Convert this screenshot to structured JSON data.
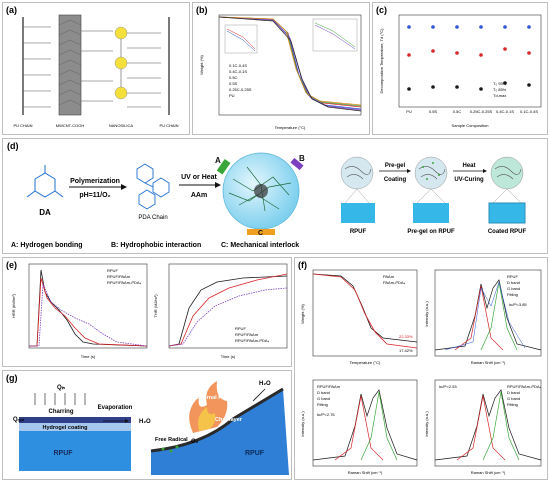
{
  "panels": {
    "a": {
      "label": "(a)",
      "chain_labels": [
        "PU CHAIN",
        "MWCNT-COOH",
        "NANOSILICA",
        "PU CHAIN"
      ]
    },
    "b": {
      "label": "(b)",
      "xlabel": "Temperature (°C)",
      "ylabel": "Weight (%)",
      "legend": [
        "0.1C-0.4S",
        "0.4C-0.1S",
        "0.5C",
        "0.5S",
        "0.25C-0.25S",
        "PU"
      ]
    },
    "c": {
      "label": "(c)",
      "xlabel": "Sample Composition",
      "ylabel": "Decomposition Temperature, Td (°C)",
      "categories": [
        "PU",
        "0.5S",
        "0.5C",
        "0.25C-0.25S",
        "0.4C-0.1S",
        "0.1C-0.4S"
      ],
      "legend": [
        "T₀ 95%",
        "T₀ 85%",
        "Td,max"
      ]
    },
    "d": {
      "label": "(d)",
      "da": "DA",
      "polymerization": "Polymerization",
      "ph": "pH=11/O₂",
      "pda_chain": "PDA Chain",
      "uv_heat": "UV or Heat",
      "aam": "AAm",
      "pre_gel": "Pre-gel",
      "coating": "Coating",
      "heat": "Heat",
      "uv_curing": "UV-Curing",
      "marker_a": "A",
      "marker_b": "B",
      "marker_c": "C",
      "foam_labels": [
        "RPUF",
        "Pre-gel on RPUF",
        "Coated RPUF"
      ],
      "caption_a": "A: Hydrogen bonding",
      "caption_b": "B: Hydrophobic interaction",
      "caption_c": "C: Mechanical interlock"
    },
    "e": {
      "label": "(e)",
      "hrr_ylabel": "HRR (kW/m²)",
      "hrr_xlabel": "Time (s)",
      "thr_ylabel": "THR (MJ/m²)",
      "thr_xlabel": "Time (s)",
      "legend": [
        "RPUF",
        "RPUF/PAAm",
        "RPUF/PAAm-PDA₄"
      ]
    },
    "f": {
      "label": "(f)",
      "tga_legend": [
        "PAAm",
        "PAAm-PDA₄"
      ],
      "tga_xlabel": "Temperature (°C)",
      "tga_ylabel": "Weight (%)",
      "residue_1": "22.33%",
      "residue_2": "17.42%",
      "raman_xlabel": "Raman Shift (cm⁻¹)",
      "raman_ylabel": "Intensity (a.u.)",
      "raman1_legend": [
        "RPUF",
        "D band",
        "G band",
        "Fitting"
      ],
      "raman1_ratio": "Iᴅ/Iᴳ=3.85",
      "raman2_legend": [
        "RPUF/PAAm",
        "D band",
        "G band",
        "Fitting"
      ],
      "raman2_ratio": "Iᴅ/Iᴳ=2.76",
      "raman3_legend": [
        "RPUF/PAAm-PDA₄",
        "D band",
        "G band",
        "Fitting"
      ],
      "raman3_ratio": "Iᴅ/Iᴳ=2.53"
    },
    "g": {
      "label": "(g)",
      "q_in": "Qᵢₙ",
      "q_out": "Qₒᵤₜ",
      "charring": "Charring",
      "evaporation": "Evaporation",
      "hydrogel_coating": "Hydrogel coating",
      "h2o": "H₂O",
      "rpuf": "RPUF",
      "external_flame": "External Flame",
      "char_layer": "Char layer",
      "free_radical": "Free Radical",
      "o2": "O₂",
      "h2o_right": "H₂O",
      "rpuf_right": "RPUF"
    }
  },
  "colors": {
    "black": "#1a1a1a",
    "red": "#d8262a",
    "purple": "#7b3fbf",
    "blue": "#2f55d4",
    "green": "#3aa63a",
    "yellow": "#f5e03a",
    "cyan": "#3fc7e8"
  }
}
